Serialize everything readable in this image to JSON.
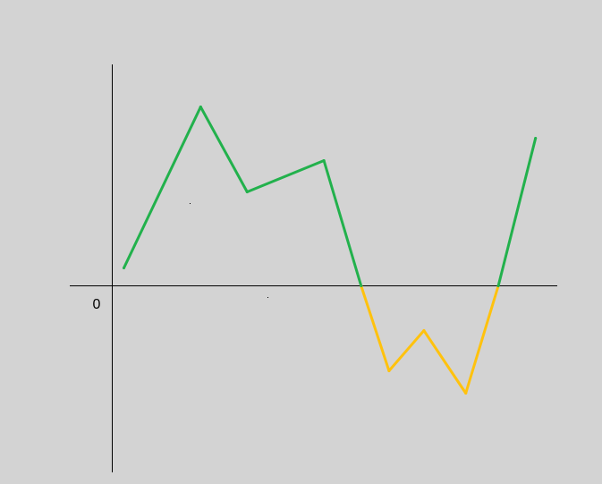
{
  "colors": {
    "background": "#d3d3d3",
    "axis": "#000000",
    "positive": "#22b14c",
    "negative": "#ffc20e"
  },
  "chart_data": {
    "type": "line",
    "title": "",
    "xlabel": "",
    "ylabel": "",
    "grid": false,
    "legend": "none",
    "xlim": [
      -0.6,
      9.2
    ],
    "ylim": [
      -2.1,
      2.5
    ],
    "y_tick_labels": [
      "0"
    ],
    "series": [
      {
        "color_positive": "#22b14c",
        "color_negative": "#ffc20e",
        "points": [
          {
            "x": 0.25,
            "y": 0.2
          },
          {
            "x": 1.9,
            "y": 2.0
          },
          {
            "x": 2.9,
            "y": 1.05
          },
          {
            "x": 4.55,
            "y": 1.4
          },
          {
            "x": 5.35,
            "y": 0
          },
          {
            "x": 5.95,
            "y": -0.95
          },
          {
            "x": 6.7,
            "y": -0.5
          },
          {
            "x": 7.6,
            "y": -1.2
          },
          {
            "x": 8.3,
            "y": 0
          },
          {
            "x": 9.1,
            "y": 1.65
          }
        ]
      }
    ]
  }
}
